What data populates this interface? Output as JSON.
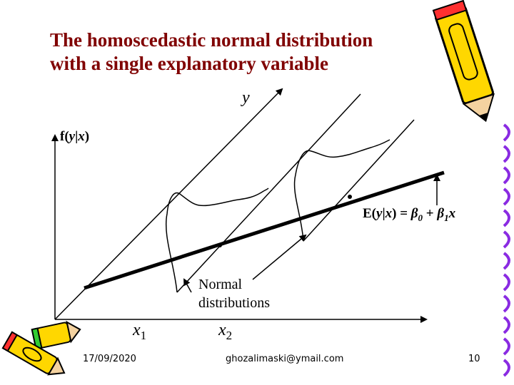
{
  "title": {
    "line1": "The homoscedastic normal distribution",
    "line2": "with a single explanatory variable"
  },
  "axes": {
    "y_label": "y",
    "fy_label_prefix": "f(",
    "fy_label_y": "y",
    "fy_label_bar": "|",
    "fy_label_x": "x",
    "fy_label_suffix": ")",
    "x1_base": "x",
    "x1_sub": "1",
    "x2_base": "x",
    "x2_sub": "2"
  },
  "annotations": {
    "expectation": {
      "lhs_prefix": "E(",
      "lhs_y": "y",
      "lhs_bar": "|",
      "lhs_x": "x",
      "lhs_suffix": ") = ",
      "beta0": "β",
      "beta0_sub": "0",
      "plus": " + ",
      "beta1": "β",
      "beta1_sub": "1",
      "var_x": "x"
    },
    "normal_line1": "Normal",
    "normal_line2": "distributions"
  },
  "footer": {
    "date": "17/09/2020",
    "email": "ghozalimaski@ymail.com",
    "page": "10"
  },
  "colors": {
    "title": "#800000",
    "line": "#000000"
  },
  "icons": [
    "pencil-icon",
    "spiral-binding-icon",
    "crayons-icon"
  ]
}
